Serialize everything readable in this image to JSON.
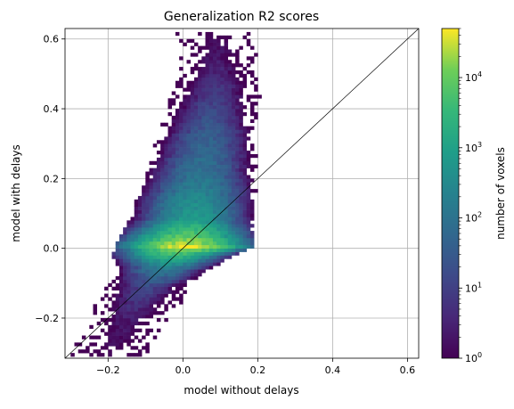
{
  "chart_data": {
    "type": "heatmap",
    "title": "Generalization R2 scores",
    "xlabel": "model without delays",
    "ylabel": "model with delays",
    "xlim": [
      -0.315,
      0.63
    ],
    "ylim": [
      -0.315,
      0.63
    ],
    "x_ticks": [
      {
        "value": -0.2,
        "label": "−0.2"
      },
      {
        "value": 0.0,
        "label": "0.0"
      },
      {
        "value": 0.2,
        "label": "0.2"
      },
      {
        "value": 0.4,
        "label": "0.4"
      },
      {
        "value": 0.6,
        "label": "0.6"
      }
    ],
    "y_ticks": [
      {
        "value": -0.2,
        "label": "−0.2"
      },
      {
        "value": 0.0,
        "label": "0.0"
      },
      {
        "value": 0.2,
        "label": "0.2"
      },
      {
        "value": 0.4,
        "label": "0.4"
      },
      {
        "value": 0.6,
        "label": "0.6"
      }
    ],
    "grid": true,
    "identity_line": true,
    "colormap": "viridis",
    "colorbar": {
      "label": "number of voxels",
      "scale": "log",
      "range": [
        1,
        50000
      ],
      "ticks": [
        {
          "value": 1,
          "label": "10",
          "exp": "0"
        },
        {
          "value": 10,
          "label": "10",
          "exp": "1"
        },
        {
          "value": 100,
          "label": "10",
          "exp": "2"
        },
        {
          "value": 1000,
          "label": "10",
          "exp": "3"
        },
        {
          "value": 10000,
          "label": "10",
          "exp": "4"
        }
      ]
    },
    "density_ridge": [
      {
        "x": -0.2,
        "y": -0.31,
        "count": 1
      },
      {
        "x": -0.15,
        "y": -0.2,
        "count": 3
      },
      {
        "x": -0.1,
        "y": -0.12,
        "count": 12
      },
      {
        "x": -0.05,
        "y": -0.06,
        "count": 200
      },
      {
        "x": -0.02,
        "y": -0.02,
        "count": 5000
      },
      {
        "x": 0.0,
        "y": 0.0,
        "count": 40000
      },
      {
        "x": 0.02,
        "y": 0.08,
        "count": 800
      },
      {
        "x": 0.04,
        "y": 0.2,
        "count": 120
      },
      {
        "x": 0.06,
        "y": 0.32,
        "count": 40
      },
      {
        "x": 0.08,
        "y": 0.44,
        "count": 8
      },
      {
        "x": 0.09,
        "y": 0.55,
        "count": 2
      },
      {
        "x": 0.08,
        "y": 0.62,
        "count": 1
      }
    ]
  }
}
